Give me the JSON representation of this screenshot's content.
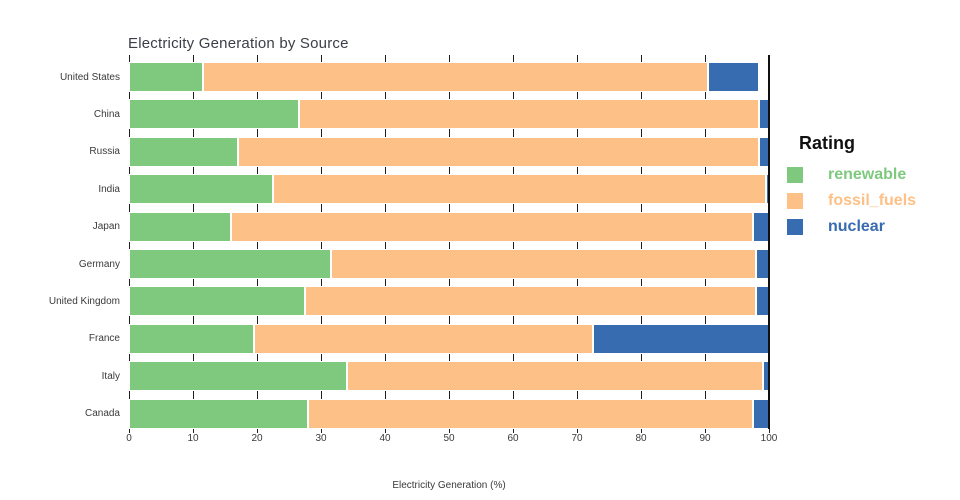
{
  "title": "Electricity Generation by Source",
  "axes": {
    "x_label": "Electricity Generation (%)",
    "x_ticks": [
      0,
      10,
      20,
      30,
      40,
      50,
      60,
      70,
      80,
      90,
      100
    ],
    "x_range": [
      0,
      100
    ]
  },
  "legend": {
    "title": "Rating",
    "items": [
      {
        "label": "renewable",
        "color": "#7fc97f"
      },
      {
        "label": "fossil_fuels",
        "color": "#fdc086"
      },
      {
        "label": "nuclear",
        "color": "#386cb0"
      }
    ]
  },
  "colors": {
    "renewable": "#7fc97f",
    "fossil_fuels": "#fdc086",
    "nuclear": "#386cb0",
    "gridline": "#1f1f1f"
  },
  "chart_data": {
    "type": "bar",
    "orientation": "horizontal",
    "stacked": true,
    "title": "Electricity Generation by Source",
    "xlabel": "Electricity Generation (%)",
    "xlim": [
      0,
      100
    ],
    "grid": "vertical dark lines every 10, visible in gaps between bars; solid axis line at 100",
    "legend_title": "Rating",
    "legend_position": "right",
    "categories": [
      "United States",
      "China",
      "Russia",
      "India",
      "Japan",
      "Germany",
      "United Kingdom",
      "France",
      "Italy",
      "Canada"
    ],
    "series": [
      {
        "name": "renewable",
        "color": "#7fc97f",
        "values": [
          11.5,
          26.5,
          17.0,
          22.5,
          16.0,
          31.5,
          27.5,
          19.5,
          34.0,
          28.0
        ]
      },
      {
        "name": "fossil_fuels",
        "color": "#fdc086",
        "values": [
          79.0,
          72.0,
          81.5,
          77.0,
          81.5,
          66.5,
          70.5,
          53.0,
          65.0,
          69.5
        ]
      },
      {
        "name": "nuclear",
        "color": "#386cb0",
        "values": [
          8.0,
          1.5,
          1.5,
          0.5,
          2.5,
          2.0,
          2.0,
          27.5,
          1.0,
          2.5
        ]
      }
    ]
  }
}
